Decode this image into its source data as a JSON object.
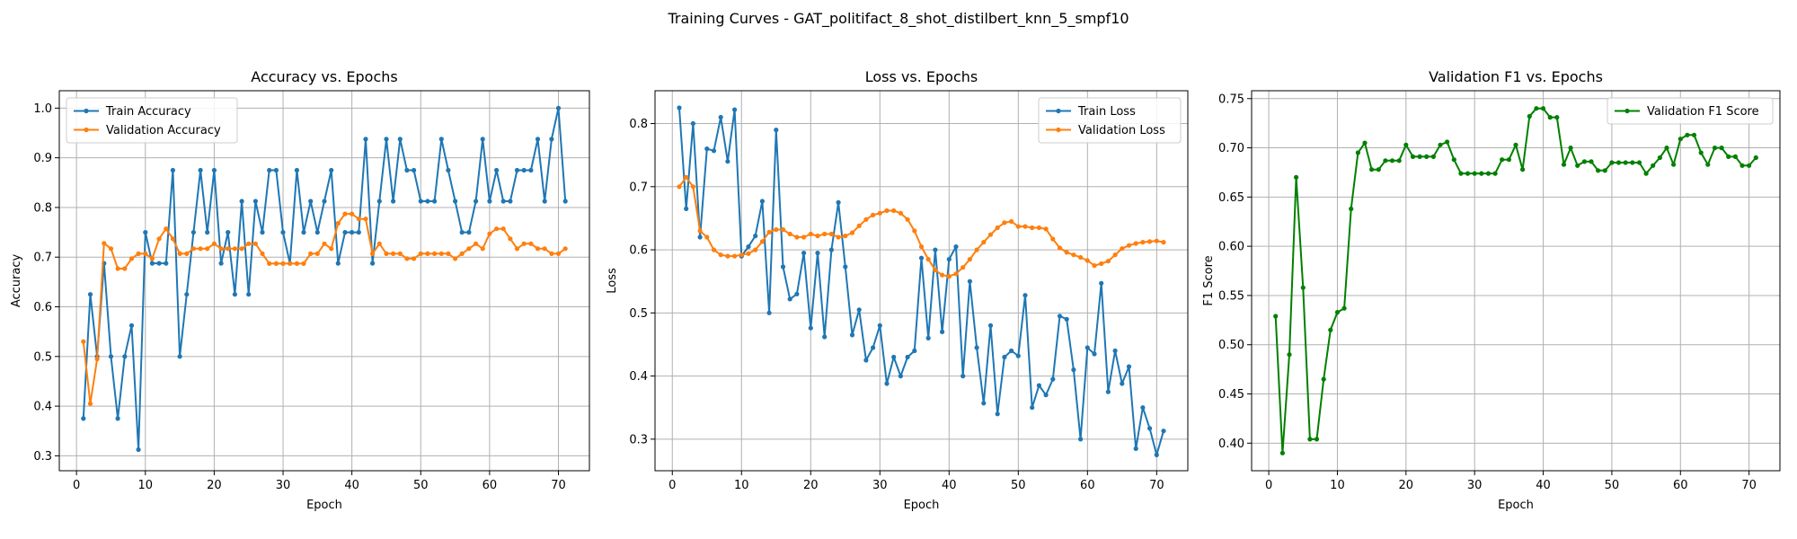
{
  "figure": {
    "suptitle": "Training Curves - GAT_politifact_8_shot_distilbert_knn_5_smpf10"
  },
  "colors": {
    "blue": "#1f77b4",
    "orange": "#ff7f0e",
    "green": "#008000",
    "grid": "#b0b0b0",
    "legend_border": "#cccccc"
  },
  "chart_data": [
    {
      "type": "line",
      "title": "Accuracy vs. Epochs",
      "xlabel": "Epoch",
      "ylabel": "Accuracy",
      "xlim": [
        -2.5,
        74.5
      ],
      "ylim": [
        0.27,
        1.035
      ],
      "xticks": [
        0,
        10,
        20,
        30,
        40,
        50,
        60,
        70
      ],
      "yticks": [
        0.3,
        0.4,
        0.5,
        0.6,
        0.7,
        0.8,
        0.9,
        1.0
      ],
      "ytick_labels": [
        "0.3",
        "0.4",
        "0.5",
        "0.6",
        "0.7",
        "0.8",
        "0.9",
        "1.0"
      ],
      "grid": true,
      "legend": "upper-left",
      "series": [
        {
          "name": "Train Accuracy",
          "color": "#1f77b4",
          "values": [
            0.375,
            0.625,
            0.5,
            0.6875,
            0.5,
            0.375,
            0.5,
            0.5625,
            0.3125,
            0.75,
            0.6875,
            0.6875,
            0.6875,
            0.875,
            0.5,
            0.625,
            0.75,
            0.875,
            0.75,
            0.875,
            0.6875,
            0.75,
            0.625,
            0.8125,
            0.625,
            0.8125,
            0.75,
            0.875,
            0.875,
            0.75,
            0.6875,
            0.875,
            0.75,
            0.8125,
            0.75,
            0.8125,
            0.875,
            0.6875,
            0.75,
            0.75,
            0.75,
            0.9375,
            0.6875,
            0.8125,
            0.9375,
            0.8125,
            0.9375,
            0.875,
            0.875,
            0.8125,
            0.8125,
            0.8125,
            0.9375,
            0.875,
            0.8125,
            0.75,
            0.75,
            0.8125,
            0.9375,
            0.8125,
            0.875,
            0.8125,
            0.8125,
            0.875,
            0.875,
            0.875,
            0.9375,
            0.8125,
            0.9375,
            1.0,
            0.8125
          ]
        },
        {
          "name": "Validation Accuracy",
          "color": "#ff7f0e",
          "values": [
            0.53,
            0.405,
            0.495,
            0.728,
            0.717,
            0.677,
            0.677,
            0.697,
            0.707,
            0.707,
            0.697,
            0.737,
            0.757,
            0.737,
            0.707,
            0.707,
            0.717,
            0.717,
            0.717,
            0.727,
            0.717,
            0.717,
            0.717,
            0.717,
            0.727,
            0.727,
            0.707,
            0.687,
            0.687,
            0.687,
            0.687,
            0.687,
            0.687,
            0.707,
            0.707,
            0.727,
            0.717,
            0.768,
            0.787,
            0.787,
            0.777,
            0.777,
            0.707,
            0.727,
            0.707,
            0.707,
            0.707,
            0.697,
            0.697,
            0.707,
            0.707,
            0.707,
            0.707,
            0.707,
            0.697,
            0.707,
            0.717,
            0.727,
            0.717,
            0.747,
            0.757,
            0.757,
            0.737,
            0.717,
            0.727,
            0.727,
            0.717,
            0.717,
            0.707,
            0.707,
            0.717
          ]
        }
      ]
    },
    {
      "type": "line",
      "title": "Loss vs. Epochs",
      "xlabel": "Epoch",
      "ylabel": "Loss",
      "xlim": [
        -2.5,
        74.5
      ],
      "ylim": [
        0.25,
        0.852
      ],
      "xticks": [
        0,
        10,
        20,
        30,
        40,
        50,
        60,
        70
      ],
      "yticks": [
        0.3,
        0.4,
        0.5,
        0.6,
        0.7,
        0.8
      ],
      "ytick_labels": [
        "0.3",
        "0.4",
        "0.5",
        "0.6",
        "0.7",
        "0.8"
      ],
      "grid": true,
      "legend": "upper-right",
      "series": [
        {
          "name": "Train Loss",
          "color": "#1f77b4",
          "values": [
            0.825,
            0.665,
            0.8,
            0.62,
            0.76,
            0.757,
            0.81,
            0.74,
            0.822,
            0.59,
            0.605,
            0.622,
            0.677,
            0.5,
            0.79,
            0.573,
            0.522,
            0.53,
            0.595,
            0.476,
            0.595,
            0.462,
            0.6,
            0.675,
            0.573,
            0.465,
            0.505,
            0.425,
            0.445,
            0.48,
            0.388,
            0.43,
            0.4,
            0.43,
            0.44,
            0.587,
            0.46,
            0.6,
            0.47,
            0.585,
            0.605,
            0.4,
            0.55,
            0.445,
            0.357,
            0.48,
            0.34,
            0.43,
            0.44,
            0.432,
            0.528,
            0.35,
            0.385,
            0.37,
            0.395,
            0.495,
            0.49,
            0.41,
            0.3,
            0.445,
            0.435,
            0.547,
            0.375,
            0.44,
            0.388,
            0.415,
            0.285,
            0.35,
            0.317,
            0.275,
            0.313
          ]
        },
        {
          "name": "Validation Loss",
          "color": "#ff7f0e",
          "values": [
            0.7,
            0.715,
            0.7,
            0.63,
            0.62,
            0.6,
            0.592,
            0.59,
            0.59,
            0.592,
            0.594,
            0.6,
            0.613,
            0.628,
            0.632,
            0.632,
            0.625,
            0.62,
            0.62,
            0.625,
            0.622,
            0.625,
            0.625,
            0.62,
            0.622,
            0.627,
            0.638,
            0.648,
            0.655,
            0.658,
            0.662,
            0.662,
            0.658,
            0.648,
            0.63,
            0.605,
            0.585,
            0.568,
            0.56,
            0.558,
            0.562,
            0.572,
            0.585,
            0.6,
            0.612,
            0.624,
            0.635,
            0.643,
            0.645,
            0.637,
            0.637,
            0.635,
            0.635,
            0.633,
            0.617,
            0.603,
            0.596,
            0.592,
            0.588,
            0.583,
            0.575,
            0.578,
            0.582,
            0.592,
            0.602,
            0.607,
            0.61,
            0.612,
            0.613,
            0.614,
            0.612
          ]
        }
      ]
    },
    {
      "type": "line",
      "title": "Validation F1 vs. Epochs",
      "xlabel": "Epoch",
      "ylabel": "F1 Score",
      "xlim": [
        -2.5,
        74.5
      ],
      "ylim": [
        0.372,
        0.758
      ],
      "xticks": [
        0,
        10,
        20,
        30,
        40,
        50,
        60,
        70
      ],
      "yticks": [
        0.4,
        0.45,
        0.5,
        0.55,
        0.6,
        0.65,
        0.7,
        0.75
      ],
      "ytick_labels": [
        "0.40",
        "0.45",
        "0.50",
        "0.55",
        "0.60",
        "0.65",
        "0.70",
        "0.75"
      ],
      "grid": true,
      "legend": "upper-right",
      "series": [
        {
          "name": "Validation F1 Score",
          "color": "#008000",
          "values": [
            0.529,
            0.39,
            0.49,
            0.67,
            0.558,
            0.404,
            0.404,
            0.465,
            0.515,
            0.533,
            0.537,
            0.638,
            0.695,
            0.705,
            0.678,
            0.678,
            0.687,
            0.687,
            0.687,
            0.703,
            0.691,
            0.691,
            0.691,
            0.691,
            0.703,
            0.706,
            0.688,
            0.674,
            0.674,
            0.674,
            0.674,
            0.674,
            0.674,
            0.688,
            0.688,
            0.703,
            0.678,
            0.732,
            0.74,
            0.74,
            0.731,
            0.731,
            0.683,
            0.7,
            0.682,
            0.686,
            0.686,
            0.677,
            0.677,
            0.685,
            0.685,
            0.685,
            0.685,
            0.685,
            0.674,
            0.682,
            0.69,
            0.7,
            0.683,
            0.709,
            0.713,
            0.713,
            0.695,
            0.683,
            0.7,
            0.7,
            0.691,
            0.691,
            0.682,
            0.682,
            0.69
          ]
        }
      ]
    }
  ]
}
